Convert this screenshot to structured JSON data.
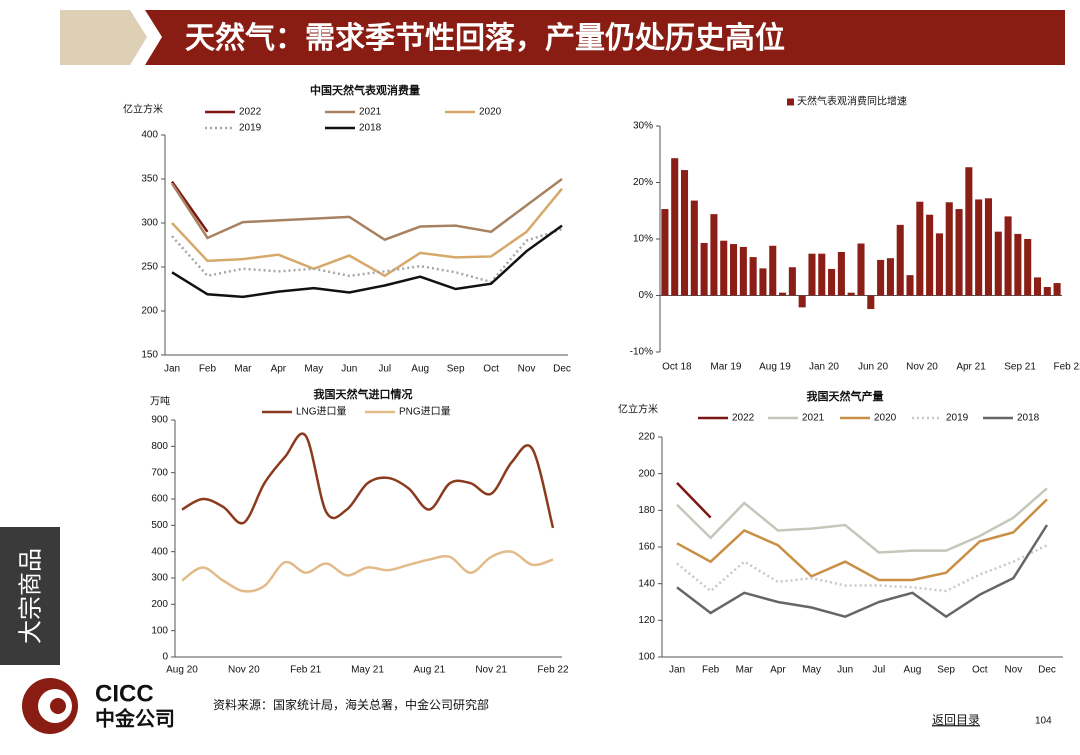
{
  "header": {
    "title": "天然气：需求季节性回落，产量仍处历史高位"
  },
  "side_tab": "大宗商品",
  "footer": {
    "logo_en": "CICC",
    "logo_cn": "中金公司",
    "source": "资料来源：国家统计局，海关总署，中金公司研究部",
    "back": "返回目录",
    "page": "104"
  },
  "chart_data": [
    {
      "type": "line",
      "title": "中国天然气表观消费量",
      "y_unit": "亿立方米",
      "categories": [
        "Jan",
        "Feb",
        "Mar",
        "Apr",
        "May",
        "Jun",
        "Jul",
        "Aug",
        "Sep",
        "Oct",
        "Nov",
        "Dec"
      ],
      "ylim": [
        150,
        400
      ],
      "yticks": [
        150,
        200,
        250,
        300,
        350,
        400
      ],
      "series": [
        {
          "name": "2022",
          "color": "#7a1712",
          "style": "solid",
          "values": [
            347,
            290,
            null,
            null,
            null,
            null,
            null,
            null,
            null,
            null,
            null,
            null
          ]
        },
        {
          "name": "2021",
          "color": "#a88260",
          "style": "solid",
          "values": [
            345,
            283,
            301,
            303,
            305,
            307,
            281,
            296,
            297,
            290,
            320,
            350
          ]
        },
        {
          "name": "2020",
          "color": "#d6a96a",
          "style": "solid",
          "values": [
            300,
            257,
            259,
            264,
            248,
            263,
            240,
            266,
            261,
            262,
            290,
            339
          ]
        },
        {
          "name": "2019",
          "color": "#a6a6a6",
          "style": "dotted",
          "values": [
            285,
            240,
            248,
            245,
            248,
            240,
            245,
            251,
            244,
            233,
            280,
            293
          ]
        },
        {
          "name": "2018",
          "color": "#111111",
          "style": "solid",
          "values": [
            244,
            219,
            216,
            222,
            226,
            221,
            229,
            239,
            225,
            231,
            268,
            297
          ]
        }
      ]
    },
    {
      "type": "bar",
      "categories": [
        "Oct 18",
        null,
        null,
        null,
        null,
        "Mar 19",
        null,
        null,
        null,
        null,
        "Aug 19",
        null,
        null,
        null,
        null,
        "Jan 20",
        null,
        null,
        null,
        null,
        "Jun 20",
        null,
        null,
        null,
        null,
        "Nov 20",
        null,
        null,
        null,
        null,
        "Apr 21",
        null,
        null,
        null,
        null,
        "Sep 21",
        null,
        null,
        null,
        null,
        "Feb 22"
      ],
      "ylim": [
        -10,
        30
      ],
      "yticks": [
        {
          "value": -10,
          "label": "-10%"
        },
        {
          "value": 0,
          "label": "0%"
        },
        {
          "value": 10,
          "label": "10%"
        },
        {
          "value": 20,
          "label": "20%"
        },
        {
          "value": 30,
          "label": "30%"
        }
      ],
      "series": [
        {
          "name": "天然气表观消费同比增速",
          "color": "#8b1e16",
          "values": [
            15.3,
            24.3,
            22.2,
            16.8,
            9.3,
            14.4,
            9.7,
            9.1,
            8.6,
            6.8,
            4.8,
            8.8,
            0.5,
            5.0,
            -2.1,
            7.4,
            7.4,
            4.7,
            7.7,
            0.5,
            9.2,
            -2.4,
            6.3,
            6.6,
            12.5,
            3.6,
            16.6,
            14.3,
            11.0,
            16.5,
            15.3,
            22.7,
            17.0,
            17.2,
            11.3,
            14.0,
            10.9,
            10.0,
            3.2,
            1.5,
            2.2
          ]
        }
      ]
    },
    {
      "type": "line",
      "title": "我国天然气进口情况",
      "y_unit": "万吨",
      "smooth": true,
      "categories": [
        "Aug 20",
        null,
        null,
        "Nov 20",
        null,
        null,
        "Feb 21",
        null,
        null,
        "May 21",
        null,
        null,
        "Aug 21",
        null,
        null,
        "Nov 21",
        null,
        null,
        "Feb 22"
      ],
      "ylim": [
        0,
        900
      ],
      "yticks": [
        0,
        100,
        200,
        300,
        400,
        500,
        600,
        700,
        800,
        900
      ],
      "series": [
        {
          "name": "LNG进口量",
          "color": "#8b3a1e",
          "style": "solid",
          "values": [
            560,
            600,
            570,
            510,
            660,
            760,
            840,
            550,
            560,
            660,
            680,
            640,
            560,
            660,
            660,
            620,
            740,
            790,
            490
          ]
        },
        {
          "name": "PNG进口量",
          "color": "#e3bb8a",
          "style": "solid",
          "values": [
            290,
            340,
            290,
            250,
            270,
            360,
            320,
            355,
            310,
            340,
            330,
            350,
            370,
            380,
            320,
            380,
            400,
            350,
            370
          ]
        }
      ]
    },
    {
      "type": "line",
      "title": "我国天然气产量",
      "y_unit": "亿立方米",
      "categories": [
        "Jan",
        "Feb",
        "Mar",
        "Apr",
        "May",
        "Jun",
        "Jul",
        "Aug",
        "Sep",
        "Oct",
        "Nov",
        "Dec"
      ],
      "ylim": [
        100,
        220
      ],
      "yticks": [
        100,
        120,
        140,
        160,
        180,
        200,
        220
      ],
      "series": [
        {
          "name": "2022",
          "color": "#7a1712",
          "style": "solid",
          "values": [
            195,
            176,
            null,
            null,
            null,
            null,
            null,
            null,
            null,
            null,
            null,
            null
          ]
        },
        {
          "name": "2021",
          "color": "#c4c7ba",
          "style": "solid",
          "values": [
            183,
            165,
            184,
            169,
            170,
            172,
            157,
            158,
            158,
            166,
            176,
            192
          ]
        },
        {
          "name": "2020",
          "color": "#c98f44",
          "style": "solid",
          "values": [
            162,
            152,
            169,
            161,
            144,
            152,
            142,
            142,
            146,
            163,
            168,
            186
          ]
        },
        {
          "name": "2019",
          "color": "#c8c8c8",
          "style": "dotted",
          "values": [
            151,
            136,
            152,
            141,
            143,
            139,
            139,
            138,
            136,
            145,
            152,
            161
          ]
        },
        {
          "name": "2018",
          "color": "#666666",
          "style": "solid",
          "values": [
            138,
            124,
            135,
            130,
            127,
            122,
            130,
            135,
            122,
            134,
            143,
            172
          ]
        }
      ]
    }
  ]
}
